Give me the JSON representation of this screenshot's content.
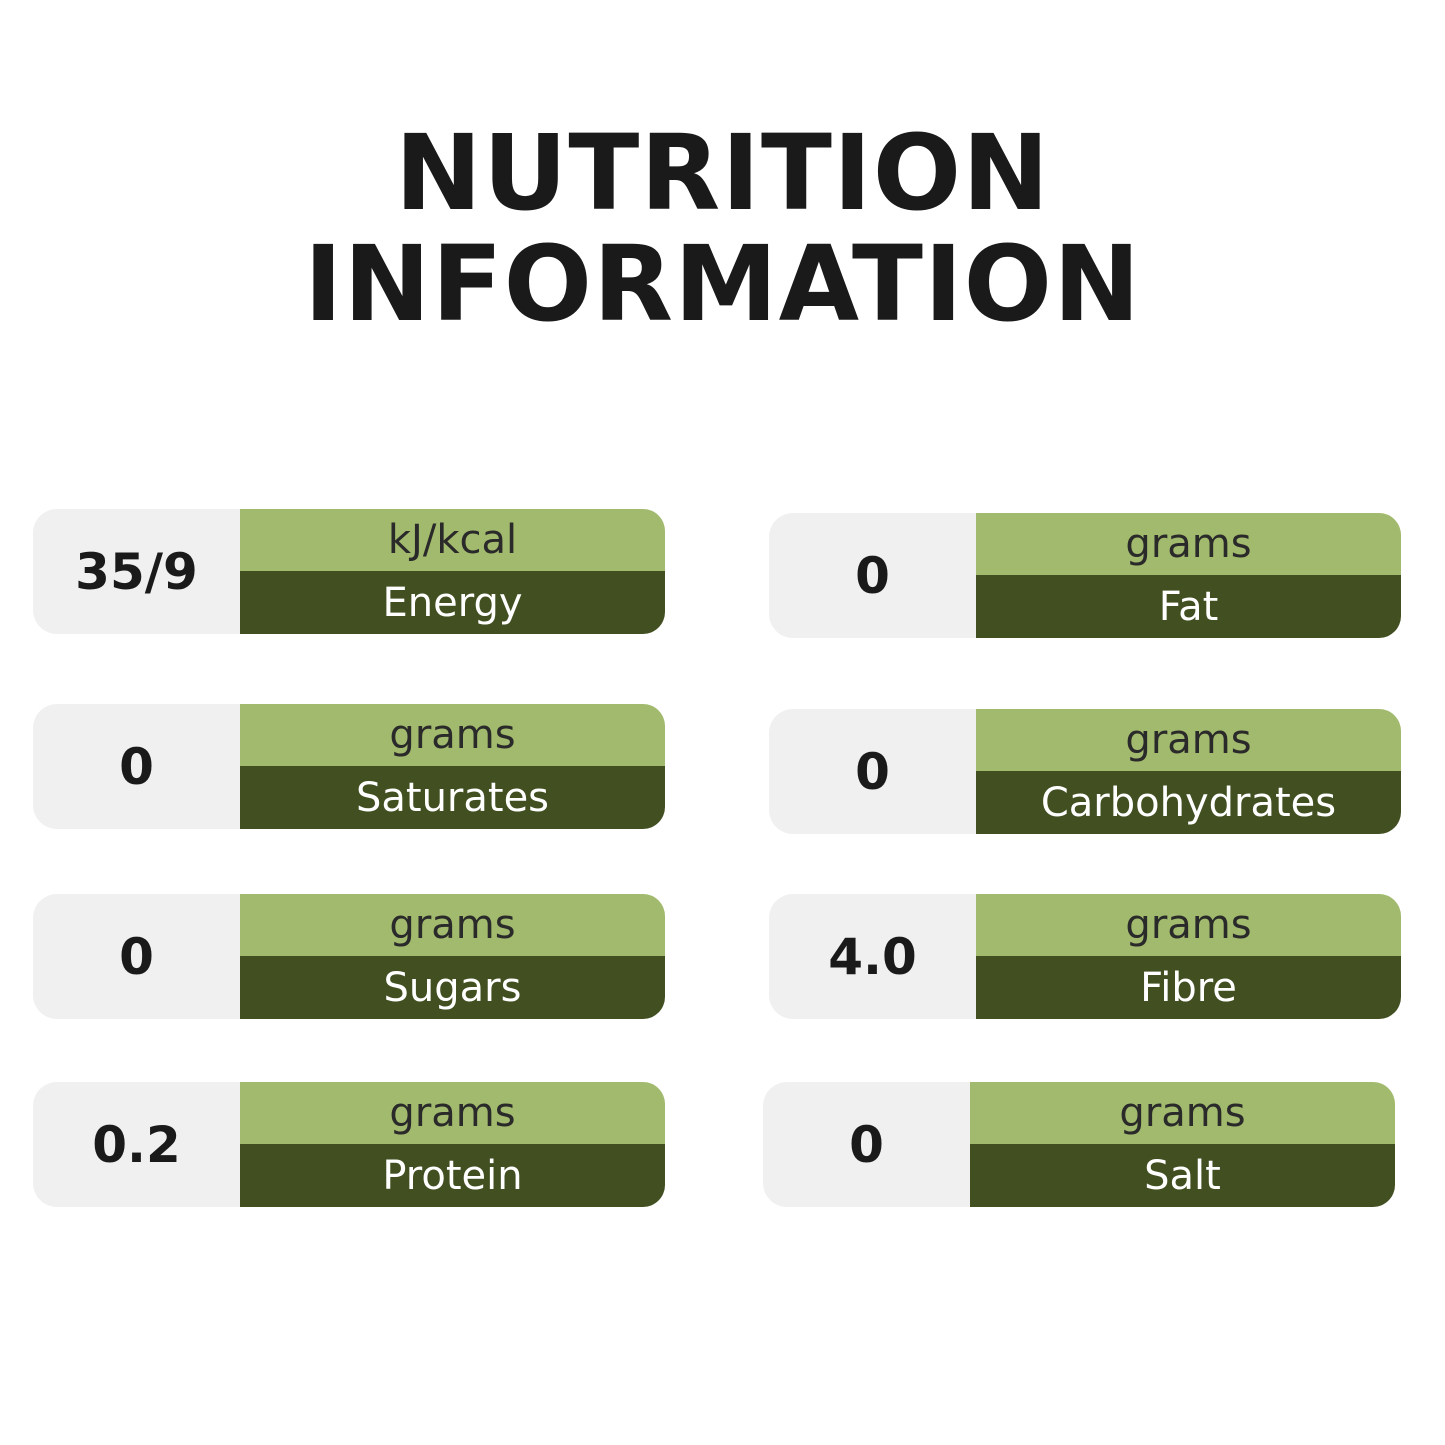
{
  "title": {
    "line1": "NUTRITION",
    "line2": "INFORMATION"
  },
  "colors": {
    "value_bg": "#f0f0f0",
    "unit_bg": "#a2ba6d",
    "name_bg": "#414f21"
  },
  "items": [
    {
      "value": "35/9",
      "unit": "kJ/kcal",
      "name": "Energy"
    },
    {
      "value": "0",
      "unit": "grams",
      "name": "Fat"
    },
    {
      "value": "0",
      "unit": "grams",
      "name": "Saturates"
    },
    {
      "value": "0",
      "unit": "grams",
      "name": "Carbohydrates"
    },
    {
      "value": "0",
      "unit": "grams",
      "name": "Sugars"
    },
    {
      "value": "4.0",
      "unit": "grams",
      "name": "Fibre"
    },
    {
      "value": "0.2",
      "unit": "grams",
      "name": "Protein"
    },
    {
      "value": "0",
      "unit": "grams",
      "name": "Salt"
    }
  ]
}
